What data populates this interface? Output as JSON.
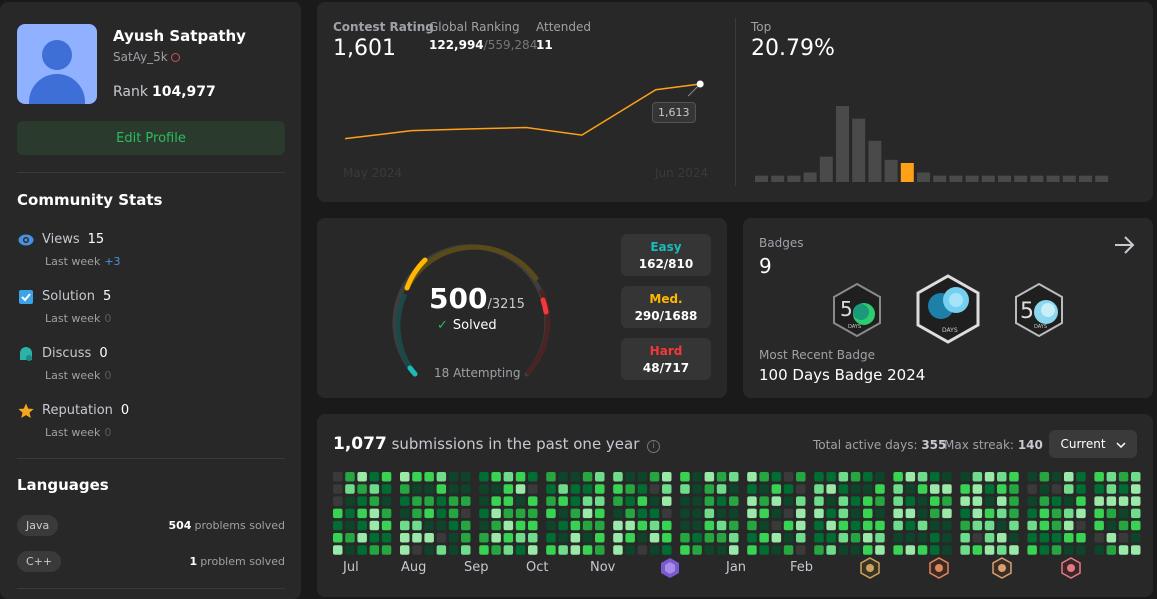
{
  "profile": {
    "name": "Ayush Satpathy",
    "handle": "SatAy_5k",
    "rank_label": "Rank",
    "rank_value": "104,977",
    "edit_label": "Edit Profile"
  },
  "community": {
    "title": "Community Stats",
    "stats": [
      {
        "label": "Views",
        "value": "15",
        "sub": "Last week",
        "delta": "+3",
        "icon": "eye-icon",
        "color": "#4a90e2"
      },
      {
        "label": "Solution",
        "value": "5",
        "sub": "Last week",
        "delta": "0",
        "icon": "checkbox-icon",
        "color": "#3ba4e8"
      },
      {
        "label": "Discuss",
        "value": "0",
        "sub": "Last week",
        "delta": "0",
        "icon": "chat-bubble-icon",
        "color": "#2ab3a6"
      },
      {
        "label": "Reputation",
        "value": "0",
        "sub": "Last week",
        "delta": "0",
        "icon": "star-icon",
        "color": "#f5a623"
      }
    ]
  },
  "languages": {
    "title": "Languages",
    "items": [
      {
        "name": "Java",
        "count": "504",
        "unit": "problems solved"
      },
      {
        "name": "C++",
        "count": "1",
        "unit": "problem solved"
      }
    ]
  },
  "contest": {
    "rating_label": "Contest Rating",
    "rating_value": "1,601",
    "global_label": "Global Ranking",
    "global_value": "122,994",
    "global_total": "/559,284",
    "attended_label": "Attended",
    "attended_value": "11",
    "tooltip": "1,613",
    "x_start": "May 2024",
    "x_end": "Jun 2024",
    "top_label": "Top",
    "top_value": "20.79%",
    "accent": "#ffa116"
  },
  "chart_data": [
    {
      "type": "line",
      "title": "Contest Rating",
      "x": [
        "May 2024",
        "",
        "",
        "",
        "",
        "",
        "Jun 2024"
      ],
      "values": [
        1490,
        1508,
        1512,
        1515,
        1498,
        1600,
        1613
      ],
      "ylim": [
        1460,
        1640
      ]
    },
    {
      "type": "bar",
      "title": "Top",
      "values": [
        4,
        4,
        4,
        6,
        16,
        48,
        40,
        26,
        14,
        12,
        6,
        4,
        4,
        4,
        4,
        4,
        4,
        4,
        4,
        4,
        4,
        4
      ],
      "highlight_index": 9
    }
  ],
  "solved": {
    "value": "500",
    "total": "/3215",
    "label": "Solved",
    "attempting": "18 Attempting",
    "easy_label": "Easy",
    "easy_value": "162/810",
    "easy_color": "#1cbaba",
    "med_label": "Med.",
    "med_value": "290/1688",
    "med_color": "#ffb700",
    "hard_label": "Hard",
    "hard_value": "48/717",
    "hard_color": "#f63737"
  },
  "badges": {
    "title": "Badges",
    "count": "9",
    "recent_label": "Most Recent Badge",
    "recent_name": "100 Days Badge 2024",
    "badge1_text": "DAYS",
    "badge2_text": "DAYS",
    "badge3_text": "DAYS"
  },
  "submissions": {
    "count": "1,077",
    "text": "submissions in the past one year",
    "active_label": "Total active days:",
    "active_value": "355",
    "streak_label": "Max streak:",
    "streak_value": "140",
    "selector": "Current",
    "months": [
      "Jul",
      "Aug",
      "Sep",
      "Oct",
      "Nov",
      "Jan",
      "Feb"
    ]
  }
}
